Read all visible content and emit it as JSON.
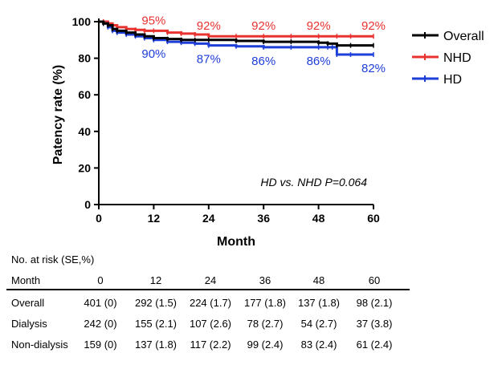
{
  "chart_data": {
    "type": "line",
    "xlabel": "Month",
    "ylabel": "Patency rate (%)",
    "xlim": [
      0,
      60
    ],
    "ylim": [
      0,
      100
    ],
    "xticks": [
      "0",
      "12",
      "24",
      "36",
      "48",
      "60"
    ],
    "yticks": [
      "0",
      "20",
      "40",
      "60",
      "80",
      "100"
    ],
    "legend_position": "top-right",
    "series": [
      {
        "name": "Overall",
        "color": "#000000",
        "x": [
          0,
          1,
          2,
          3,
          4,
          6,
          8,
          10,
          12,
          15,
          18,
          21,
          24,
          30,
          36,
          42,
          48,
          50,
          52,
          55,
          60
        ],
        "y": [
          100,
          99,
          98,
          96,
          95,
          94,
          93,
          92,
          91,
          90.5,
          90,
          90,
          90,
          89.5,
          89,
          89,
          88.5,
          88,
          87,
          87,
          87
        ]
      },
      {
        "name": "NHD",
        "color": "#e8322f",
        "x": [
          0,
          1,
          2,
          3,
          4,
          6,
          8,
          10,
          12,
          15,
          18,
          21,
          24,
          30,
          36,
          42,
          48,
          52,
          55,
          60
        ],
        "y": [
          100,
          100,
          99,
          98,
          97,
          96,
          95.5,
          95,
          95,
          94,
          93.5,
          93,
          92,
          92,
          92,
          92,
          92,
          92,
          92,
          92
        ]
      },
      {
        "name": "HD",
        "color": "#1e3ed8",
        "x": [
          0,
          1,
          2,
          3,
          4,
          6,
          8,
          10,
          12,
          15,
          18,
          21,
          24,
          30,
          36,
          42,
          48,
          50,
          51,
          52,
          55,
          60
        ],
        "y": [
          100,
          99,
          97,
          95,
          94,
          93,
          92,
          91,
          90,
          89,
          88.5,
          88,
          87,
          86.5,
          86,
          86,
          86,
          86,
          86,
          82,
          82,
          82
        ]
      }
    ],
    "annotations": {
      "nhd_labels": [
        {
          "x": 12,
          "text": "95%"
        },
        {
          "x": 24,
          "text": "92%"
        },
        {
          "x": 36,
          "text": "92%"
        },
        {
          "x": 48,
          "text": "92%"
        },
        {
          "x": 60,
          "text": "92%"
        }
      ],
      "hd_labels": [
        {
          "x": 12,
          "text": "90%"
        },
        {
          "x": 24,
          "text": "87%"
        },
        {
          "x": 36,
          "text": "86%"
        },
        {
          "x": 48,
          "text": "86%"
        },
        {
          "x": 60,
          "text": "82%"
        }
      ],
      "p_value_text": "HD vs. NHD P=0.064"
    }
  },
  "risk_table": {
    "title": "No. at risk (SE,%)",
    "header_label": "Month",
    "months": [
      "0",
      "12",
      "24",
      "36",
      "48",
      "60"
    ],
    "rows": [
      {
        "label": "Overall",
        "values": [
          "401 (0)",
          "292 (1.5)",
          "224 (1.7)",
          "177 (1.8)",
          "137 (1.8)",
          "98 (2.1)"
        ]
      },
      {
        "label": "Dialysis",
        "values": [
          "242 (0)",
          "155 (2.1)",
          "107 (2.6)",
          "78 (2.7)",
          "54 (2.7)",
          "37 (3.8)"
        ]
      },
      {
        "label": "Non-dialysis",
        "values": [
          "159 (0)",
          "137 (1.8)",
          "117 (2.2)",
          "99 (2.4)",
          "83 (2.4)",
          "61 (2.4)"
        ]
      }
    ]
  }
}
